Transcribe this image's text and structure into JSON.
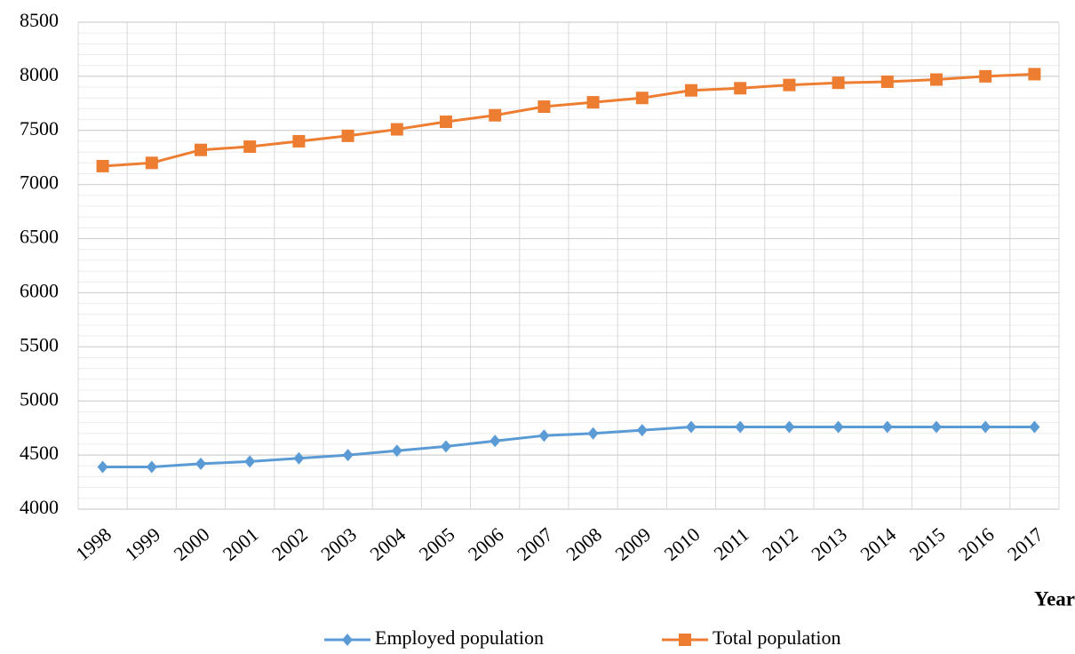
{
  "chart_data": {
    "type": "line",
    "x_label": "Year",
    "categories": [
      "1998",
      "1999",
      "2000",
      "2001",
      "2002",
      "2003",
      "2004",
      "2005",
      "2006",
      "2007",
      "2008",
      "2009",
      "2010",
      "2011",
      "2012",
      "2013",
      "2014",
      "2015",
      "2016",
      "2017"
    ],
    "series": [
      {
        "name": "Employed population",
        "color": "#5b9bd5",
        "marker": "diamond",
        "values": [
          4390,
          4390,
          4420,
          4440,
          4470,
          4500,
          4540,
          4580,
          4630,
          4680,
          4700,
          4730,
          4760,
          4760,
          4760,
          4760,
          4760,
          4760,
          4760,
          4760
        ]
      },
      {
        "name": "Total population",
        "color": "#ed7d31",
        "marker": "square",
        "values": [
          7170,
          7200,
          7320,
          7350,
          7400,
          7450,
          7510,
          7580,
          7640,
          7720,
          7760,
          7800,
          7870,
          7890,
          7920,
          7940,
          7950,
          7970,
          8000,
          8020
        ]
      }
    ],
    "ylim": [
      4000,
      8500
    ],
    "yticks": [
      4000,
      4500,
      5000,
      5500,
      6000,
      6500,
      7000,
      7500,
      8000,
      8500
    ],
    "grid": true,
    "legend": "bottom"
  }
}
